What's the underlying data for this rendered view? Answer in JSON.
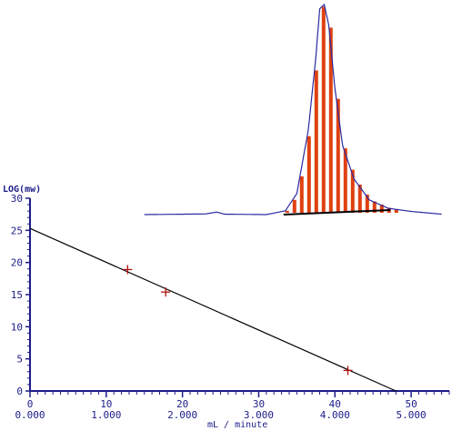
{
  "chart_data": [
    {
      "type": "line",
      "name": "calibration",
      "xlabel": "mL / minute",
      "ylabel": "LOG(mw)",
      "xlim": [
        0,
        5.5
      ],
      "ylim": [
        0,
        30
      ],
      "x_ticks_top": [
        "0",
        "10",
        "20",
        "30",
        "40",
        "50"
      ],
      "x_ticks_bottom": [
        "0.000",
        "1.000",
        "2.000",
        "3.000",
        "4.000",
        "5.000"
      ],
      "y_ticks": [
        "0",
        "5",
        "10",
        "15",
        "20",
        "25",
        "30"
      ],
      "calibration_line": {
        "x": [
          0,
          4.8
        ],
        "y": [
          25.3,
          0
        ]
      },
      "standards": {
        "x": [
          1.28,
          1.78,
          4.17
        ],
        "y": [
          18.9,
          15.4,
          3.2
        ]
      },
      "colors": {
        "axes": "#1c1c8a",
        "line": "#000000",
        "marker": "#b01010"
      }
    },
    {
      "type": "area",
      "name": "chromatogram-peak",
      "description": "elution trace with baseline and hatched peak fill",
      "trace": {
        "x": [
          1.5,
          2.3,
          2.45,
          2.55,
          3.1,
          3.35,
          3.5,
          3.65,
          3.75,
          3.8,
          3.86,
          3.92,
          4.0,
          4.1,
          4.25,
          4.45,
          4.7,
          5.0,
          5.4
        ],
        "y": [
          0,
          0.3,
          1.2,
          0.2,
          0,
          1.8,
          10,
          40,
          75,
          98,
          100,
          90,
          60,
          33,
          17,
          7,
          3,
          1.5,
          0.2
        ]
      },
      "fill_range": [
        3.35,
        4.8
      ],
      "colors": {
        "trace": "#2a2aa0",
        "fill": "#e04010",
        "baseline": "#000000"
      }
    }
  ]
}
